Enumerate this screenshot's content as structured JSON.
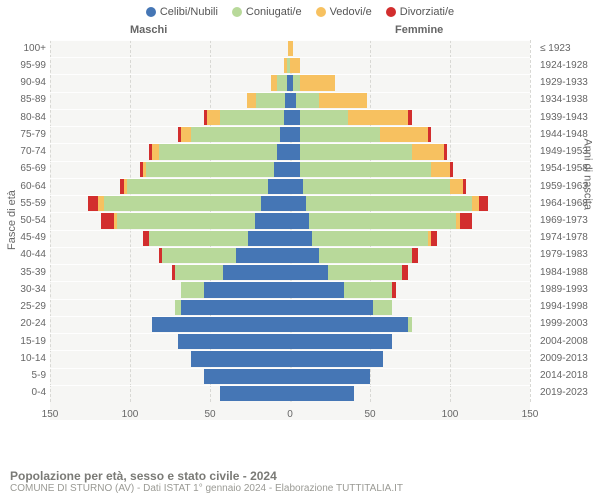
{
  "legend": [
    {
      "label": "Celibi/Nubili",
      "color": "#4576b5"
    },
    {
      "label": "Coniugati/e",
      "color": "#b8d99a"
    },
    {
      "label": "Vedovi/e",
      "color": "#f7c160"
    },
    {
      "label": "Divorziati/e",
      "color": "#d22e2e"
    }
  ],
  "headers": {
    "male": "Maschi",
    "female": "Femmine"
  },
  "axis_titles": {
    "left": "Fasce di età",
    "right": "Anni di nascita"
  },
  "footer": {
    "title": "Popolazione per età, sesso e stato civile - 2024",
    "subtitle": "COMUNE DI STURNO (AV) - Dati ISTAT 1° gennaio 2024 - Elaborazione TUTTITALIA.IT"
  },
  "chart": {
    "type": "population-pyramid",
    "x_max": 150,
    "x_ticks": [
      150,
      100,
      50,
      0,
      50,
      100,
      150
    ],
    "background_color": "#f6f6f4",
    "grid_color": "#d8d8d4",
    "bar_gap": 2,
    "status_colors": {
      "single": "#4576b5",
      "married": "#b8d99a",
      "widowed": "#f7c160",
      "divorced": "#d22e2e"
    },
    "rows": [
      {
        "age": "100+",
        "birth": "≤ 1923",
        "m": {
          "single": 0,
          "married": 0,
          "widowed": 1,
          "divorced": 0
        },
        "f": {
          "single": 0,
          "married": 0,
          "widowed": 2,
          "divorced": 0
        }
      },
      {
        "age": "95-99",
        "birth": "1924-1928",
        "m": {
          "single": 0,
          "married": 2,
          "widowed": 2,
          "divorced": 0
        },
        "f": {
          "single": 0,
          "married": 0,
          "widowed": 6,
          "divorced": 0
        }
      },
      {
        "age": "90-94",
        "birth": "1929-1933",
        "m": {
          "single": 2,
          "married": 6,
          "widowed": 4,
          "divorced": 0
        },
        "f": {
          "single": 2,
          "married": 4,
          "widowed": 22,
          "divorced": 0
        }
      },
      {
        "age": "85-89",
        "birth": "1934-1938",
        "m": {
          "single": 3,
          "married": 18,
          "widowed": 6,
          "divorced": 0
        },
        "f": {
          "single": 4,
          "married": 14,
          "widowed": 30,
          "divorced": 0
        }
      },
      {
        "age": "80-84",
        "birth": "1939-1943",
        "m": {
          "single": 4,
          "married": 40,
          "widowed": 8,
          "divorced": 2
        },
        "f": {
          "single": 6,
          "married": 30,
          "widowed": 38,
          "divorced": 2
        }
      },
      {
        "age": "75-79",
        "birth": "1944-1948",
        "m": {
          "single": 6,
          "married": 56,
          "widowed": 6,
          "divorced": 2
        },
        "f": {
          "single": 6,
          "married": 50,
          "widowed": 30,
          "divorced": 2
        }
      },
      {
        "age": "70-74",
        "birth": "1949-1953",
        "m": {
          "single": 8,
          "married": 74,
          "widowed": 4,
          "divorced": 2
        },
        "f": {
          "single": 6,
          "married": 70,
          "widowed": 20,
          "divorced": 2
        }
      },
      {
        "age": "65-69",
        "birth": "1954-1958",
        "m": {
          "single": 10,
          "married": 80,
          "widowed": 2,
          "divorced": 2
        },
        "f": {
          "single": 6,
          "married": 82,
          "widowed": 12,
          "divorced": 2
        }
      },
      {
        "age": "60-64",
        "birth": "1959-1963",
        "m": {
          "single": 14,
          "married": 88,
          "widowed": 2,
          "divorced": 2
        },
        "f": {
          "single": 8,
          "married": 92,
          "widowed": 8,
          "divorced": 2
        }
      },
      {
        "age": "55-59",
        "birth": "1964-1968",
        "m": {
          "single": 18,
          "married": 98,
          "widowed": 4,
          "divorced": 6
        },
        "f": {
          "single": 10,
          "married": 104,
          "widowed": 4,
          "divorced": 6
        }
      },
      {
        "age": "50-54",
        "birth": "1969-1973",
        "m": {
          "single": 22,
          "married": 86,
          "widowed": 2,
          "divorced": 8
        },
        "f": {
          "single": 12,
          "married": 92,
          "widowed": 2,
          "divorced": 8
        }
      },
      {
        "age": "45-49",
        "birth": "1974-1978",
        "m": {
          "single": 26,
          "married": 62,
          "widowed": 0,
          "divorced": 4
        },
        "f": {
          "single": 14,
          "married": 72,
          "widowed": 2,
          "divorced": 4
        }
      },
      {
        "age": "40-44",
        "birth": "1979-1983",
        "m": {
          "single": 34,
          "married": 46,
          "widowed": 0,
          "divorced": 2
        },
        "f": {
          "single": 18,
          "married": 58,
          "widowed": 0,
          "divorced": 4
        }
      },
      {
        "age": "35-39",
        "birth": "1984-1988",
        "m": {
          "single": 42,
          "married": 30,
          "widowed": 0,
          "divorced": 2
        },
        "f": {
          "single": 24,
          "married": 46,
          "widowed": 0,
          "divorced": 4
        }
      },
      {
        "age": "30-34",
        "birth": "1989-1993",
        "m": {
          "single": 54,
          "married": 14,
          "widowed": 0,
          "divorced": 0
        },
        "f": {
          "single": 34,
          "married": 30,
          "widowed": 0,
          "divorced": 2
        }
      },
      {
        "age": "25-29",
        "birth": "1994-1998",
        "m": {
          "single": 68,
          "married": 4,
          "widowed": 0,
          "divorced": 0
        },
        "f": {
          "single": 52,
          "married": 12,
          "widowed": 0,
          "divorced": 0
        }
      },
      {
        "age": "20-24",
        "birth": "1999-2003",
        "m": {
          "single": 86,
          "married": 0,
          "widowed": 0,
          "divorced": 0
        },
        "f": {
          "single": 74,
          "married": 2,
          "widowed": 0,
          "divorced": 0
        }
      },
      {
        "age": "15-19",
        "birth": "2004-2008",
        "m": {
          "single": 70,
          "married": 0,
          "widowed": 0,
          "divorced": 0
        },
        "f": {
          "single": 64,
          "married": 0,
          "widowed": 0,
          "divorced": 0
        }
      },
      {
        "age": "10-14",
        "birth": "2009-2013",
        "m": {
          "single": 62,
          "married": 0,
          "widowed": 0,
          "divorced": 0
        },
        "f": {
          "single": 58,
          "married": 0,
          "widowed": 0,
          "divorced": 0
        }
      },
      {
        "age": "5-9",
        "birth": "2014-2018",
        "m": {
          "single": 54,
          "married": 0,
          "widowed": 0,
          "divorced": 0
        },
        "f": {
          "single": 50,
          "married": 0,
          "widowed": 0,
          "divorced": 0
        }
      },
      {
        "age": "0-4",
        "birth": "2019-2023",
        "m": {
          "single": 44,
          "married": 0,
          "widowed": 0,
          "divorced": 0
        },
        "f": {
          "single": 40,
          "married": 0,
          "widowed": 0,
          "divorced": 0
        }
      }
    ]
  }
}
